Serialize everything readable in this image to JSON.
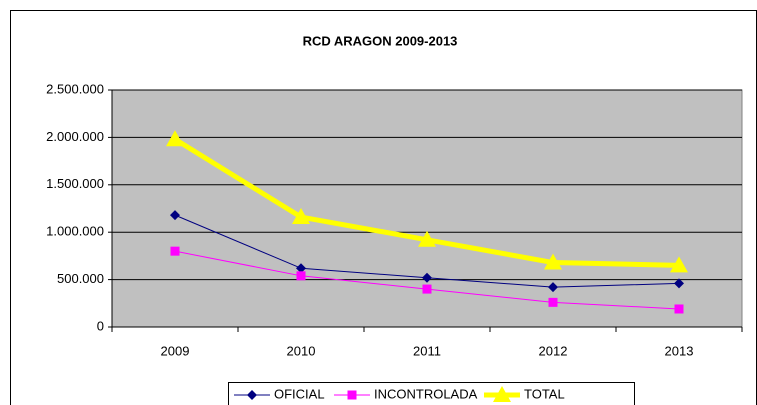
{
  "chart_data": {
    "type": "line",
    "title": "RCD ARAGON 2009-2013",
    "categories": [
      "2009",
      "2010",
      "2011",
      "2012",
      "2013"
    ],
    "series": [
      {
        "name": "OFICIAL",
        "color": "#000080",
        "marker": "diamond",
        "line_width": 1,
        "values": [
          1180000,
          620000,
          520000,
          420000,
          460000
        ]
      },
      {
        "name": "INCONTROLADA",
        "color": "#ff00ff",
        "marker": "square",
        "line_width": 1,
        "values": [
          800000,
          540000,
          400000,
          260000,
          190000
        ]
      },
      {
        "name": "TOTAL",
        "color": "#ffff00",
        "marker": "triangle",
        "line_width": 5,
        "values": [
          1980000,
          1160000,
          920000,
          680000,
          650000
        ]
      }
    ],
    "ylim": [
      0,
      2500000
    ],
    "yticks": [
      0,
      {
        "value": 500000,
        "label": "500.000"
      },
      {
        "value": 1000000,
        "label": "1.000.000"
      },
      {
        "value": 1500000,
        "label": "1.500.000"
      },
      {
        "value": 2000000,
        "label": "2.000.000"
      },
      {
        "value": 2500000,
        "label": "2.500.000"
      }
    ],
    "grid": true,
    "legend": "bottom",
    "plot_background": "#c0c0c0"
  }
}
